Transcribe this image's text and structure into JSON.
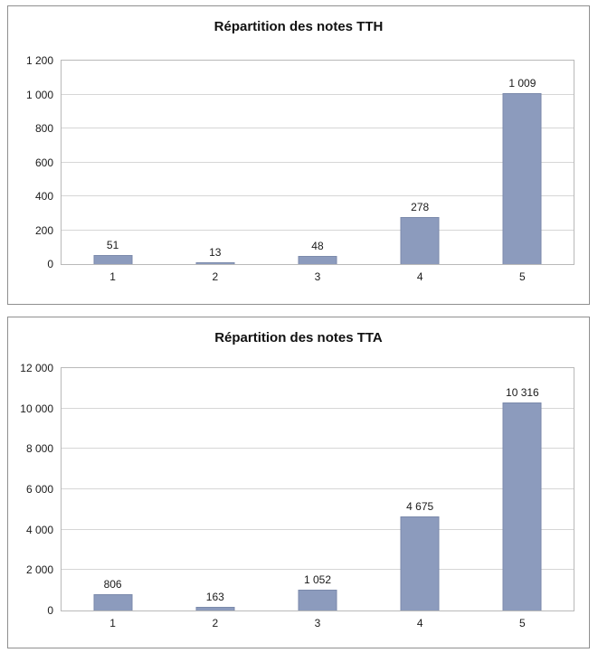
{
  "colors": {
    "bar_fill": "#8c9bbd",
    "bar_border": "#7b8aab",
    "gridline": "#d6d6d6",
    "panel_border": "#8f8f8f",
    "text": "#111111"
  },
  "chart_data": [
    {
      "type": "bar",
      "title": "Répartition des notes TTH",
      "categories": [
        "1",
        "2",
        "3",
        "4",
        "5"
      ],
      "values": [
        51,
        13,
        48,
        278,
        1009
      ],
      "value_labels": [
        "51",
        "13",
        "48",
        "278",
        "1 009"
      ],
      "xlabel": "",
      "ylabel": "",
      "ylim": [
        0,
        1200
      ],
      "yticks": [
        0,
        200,
        400,
        600,
        800,
        1000,
        1200
      ],
      "ytick_labels": [
        "0",
        "200",
        "400",
        "600",
        "800",
        "1 000",
        "1 200"
      ],
      "grid": true,
      "legend": "none",
      "data_labels": true
    },
    {
      "type": "bar",
      "title": "Répartition des notes TTA",
      "categories": [
        "1",
        "2",
        "3",
        "4",
        "5"
      ],
      "values": [
        806,
        163,
        1052,
        4675,
        10316
      ],
      "value_labels": [
        "806",
        "163",
        "1 052",
        "4 675",
        "10 316"
      ],
      "xlabel": "",
      "ylabel": "",
      "ylim": [
        0,
        12000
      ],
      "yticks": [
        0,
        2000,
        4000,
        6000,
        8000,
        10000,
        12000
      ],
      "ytick_labels": [
        "0",
        "2 000",
        "4 000",
        "6 000",
        "8 000",
        "10 000",
        "12 000"
      ],
      "grid": true,
      "legend": "none",
      "data_labels": true
    }
  ]
}
